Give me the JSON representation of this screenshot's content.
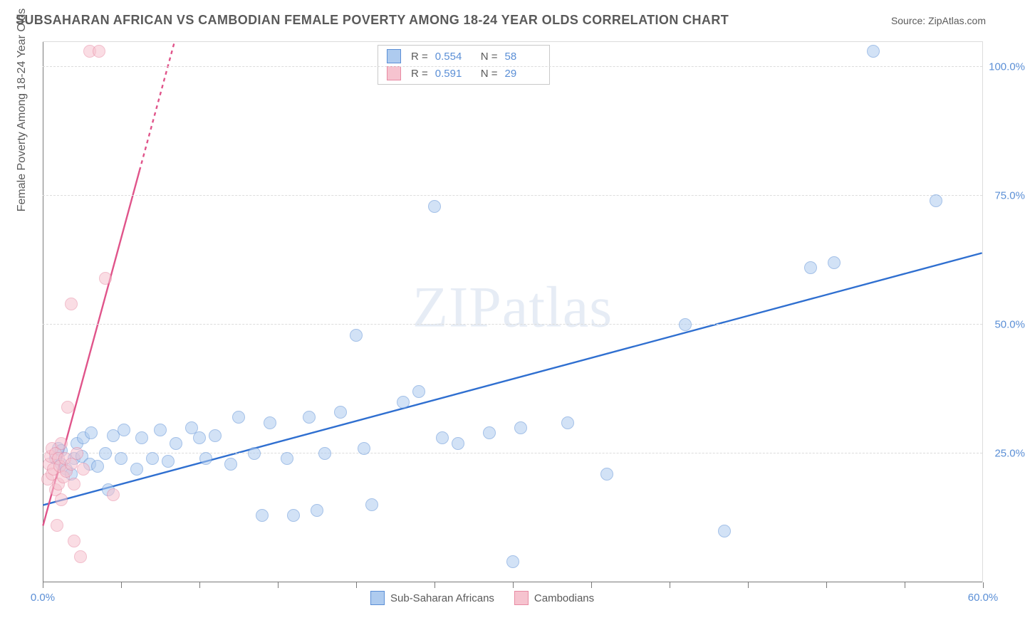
{
  "header": {
    "title": "SUBSAHARAN AFRICAN VS CAMBODIAN FEMALE POVERTY AMONG 18-24 YEAR OLDS CORRELATION CHART",
    "source": "Source: ZipAtlas.com"
  },
  "ylabel": "Female Poverty Among 18-24 Year Olds",
  "watermark_a": "ZIP",
  "watermark_b": "atlas",
  "chart": {
    "type": "scatter",
    "x_range": [
      0,
      60
    ],
    "y_range": [
      0,
      105
    ],
    "y_ticks": [
      25,
      50,
      75,
      100
    ],
    "y_tick_labels": [
      "25.0%",
      "50.0%",
      "75.0%",
      "100.0%"
    ],
    "x_tick_positions": [
      0,
      5,
      10,
      15,
      20,
      25,
      30,
      35,
      40,
      45,
      50,
      55,
      60
    ],
    "x_labels": {
      "0": "0.0%",
      "60": "60.0%"
    },
    "background_color": "#ffffff",
    "grid_color": "#dcdcdc",
    "axis_color": "#7a7a7a",
    "tick_label_color": "#5b8fd6",
    "point_radius": 9,
    "point_opacity": 0.55,
    "series": [
      {
        "name": "Sub-Saharan Africans",
        "color_fill": "#aecbef",
        "color_stroke": "#5b8fd6",
        "trend_color": "#2f6fd0",
        "trend_width": 2.4,
        "trend": {
          "x1": 0,
          "y1": 15,
          "x2": 60,
          "y2": 64
        },
        "R": "0.554",
        "N": "58",
        "points": [
          [
            0.8,
            24
          ],
          [
            1.0,
            26
          ],
          [
            1.2,
            23
          ],
          [
            1.2,
            25.5
          ],
          [
            1.5,
            22
          ],
          [
            1.8,
            21
          ],
          [
            2.0,
            24
          ],
          [
            2.2,
            27
          ],
          [
            2.5,
            24.5
          ],
          [
            2.6,
            28
          ],
          [
            3.0,
            23
          ],
          [
            3.1,
            29
          ],
          [
            3.5,
            22.5
          ],
          [
            4.0,
            25
          ],
          [
            4.2,
            18
          ],
          [
            4.5,
            28.5
          ],
          [
            5.0,
            24
          ],
          [
            5.2,
            29.5
          ],
          [
            6.0,
            22
          ],
          [
            6.3,
            28
          ],
          [
            7.0,
            24
          ],
          [
            7.5,
            29.5
          ],
          [
            8.0,
            23.5
          ],
          [
            8.5,
            27
          ],
          [
            9.5,
            30
          ],
          [
            10.0,
            28
          ],
          [
            10.4,
            24
          ],
          [
            11.0,
            28.5
          ],
          [
            12.0,
            23
          ],
          [
            12.5,
            32
          ],
          [
            13.5,
            25
          ],
          [
            14.5,
            31
          ],
          [
            15.6,
            24
          ],
          [
            16.0,
            13
          ],
          [
            17.0,
            32
          ],
          [
            17.5,
            14
          ],
          [
            18.0,
            25
          ],
          [
            19.0,
            33
          ],
          [
            20.0,
            48
          ],
          [
            20.5,
            26
          ],
          [
            21.0,
            15
          ],
          [
            23.0,
            35
          ],
          [
            24.0,
            37
          ],
          [
            25.0,
            73
          ],
          [
            25.5,
            28
          ],
          [
            26.5,
            27
          ],
          [
            28.5,
            29
          ],
          [
            30.0,
            4
          ],
          [
            30.5,
            30
          ],
          [
            33.5,
            31
          ],
          [
            36.0,
            21
          ],
          [
            41.0,
            50
          ],
          [
            43.5,
            10
          ],
          [
            49.0,
            61
          ],
          [
            50.5,
            62
          ],
          [
            53.0,
            103
          ],
          [
            57.0,
            74
          ],
          [
            14.0,
            13
          ]
        ]
      },
      {
        "name": "Cambodians",
        "color_fill": "#f6c3cf",
        "color_stroke": "#e88aa3",
        "trend_color": "#e0548a",
        "trend_width": 2.4,
        "trend": {
          "x1": 0,
          "y1": 11,
          "x2": 8.4,
          "y2": 105
        },
        "trend_dash_after_y": 80,
        "R": "0.591",
        "N": "29",
        "points": [
          [
            0.3,
            20
          ],
          [
            0.4,
            23
          ],
          [
            0.5,
            24.5
          ],
          [
            0.6,
            21
          ],
          [
            0.6,
            26
          ],
          [
            0.7,
            22
          ],
          [
            0.8,
            25
          ],
          [
            0.8,
            18
          ],
          [
            0.9,
            11
          ],
          [
            1.0,
            19
          ],
          [
            1.0,
            24
          ],
          [
            1.1,
            22.5
          ],
          [
            1.2,
            16
          ],
          [
            1.2,
            27
          ],
          [
            1.3,
            20.5
          ],
          [
            1.4,
            24
          ],
          [
            1.5,
            21.5
          ],
          [
            1.6,
            34
          ],
          [
            1.8,
            23
          ],
          [
            1.8,
            54
          ],
          [
            2.0,
            19
          ],
          [
            2.0,
            8
          ],
          [
            2.2,
            25
          ],
          [
            2.4,
            5
          ],
          [
            2.6,
            22
          ],
          [
            3.0,
            103
          ],
          [
            3.6,
            103
          ],
          [
            4.0,
            59
          ],
          [
            4.5,
            17
          ]
        ]
      }
    ]
  },
  "legend": {
    "stat_prefix_R": "R =",
    "stat_prefix_N": "N ="
  }
}
